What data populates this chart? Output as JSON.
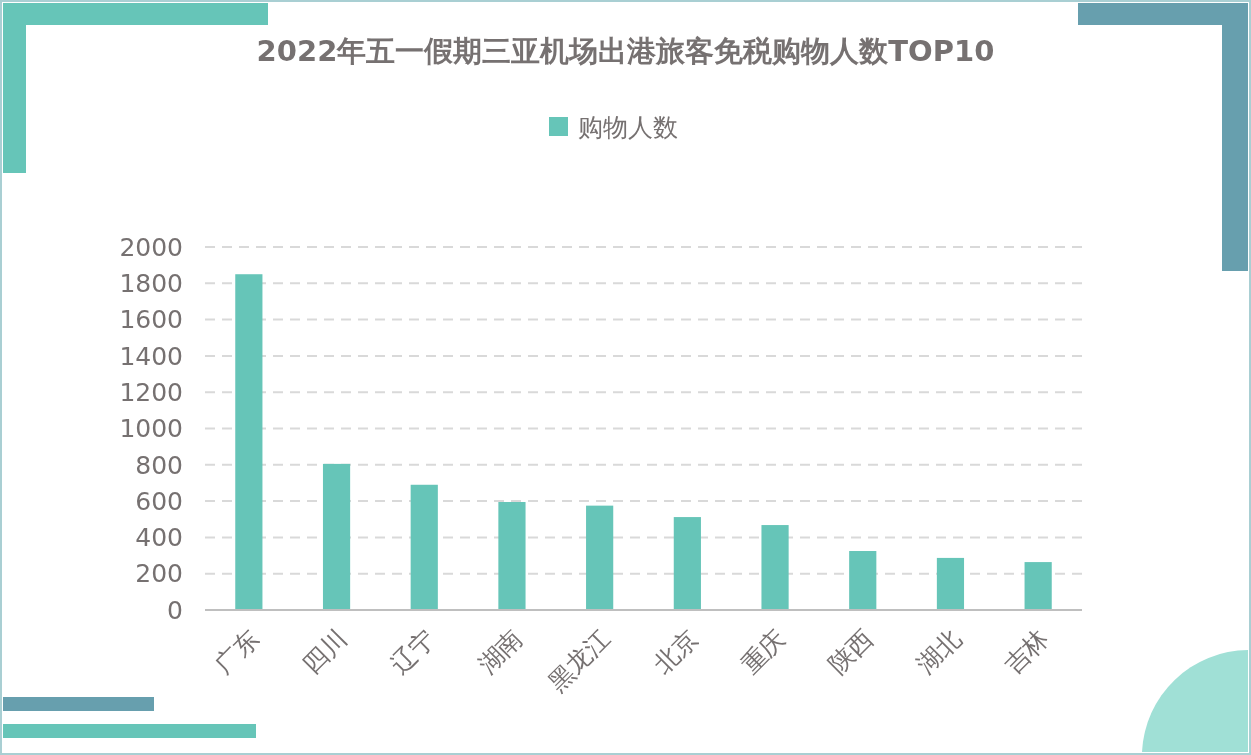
{
  "chart_data": {
    "type": "bar",
    "title": "2022年五一假期三亚机场出港旅客免税购物人数TOP10",
    "categories": [
      "广东",
      "四川",
      "辽宁",
      "湖南",
      "黑龙江",
      "北京",
      "重庆",
      "陕西",
      "湖北",
      "吉林"
    ],
    "series": [
      {
        "name": "购物人数",
        "color": "#66c5b8",
        "values": [
          1850,
          805,
          690,
          595,
          575,
          512,
          468,
          325,
          287,
          264
        ]
      }
    ],
    "ylim": [
      0,
      2000
    ],
    "yticks": [
      0,
      200,
      400,
      600,
      800,
      1000,
      1200,
      1400,
      1600,
      1800,
      2000
    ],
    "grid": "y",
    "legend": "top"
  }
}
